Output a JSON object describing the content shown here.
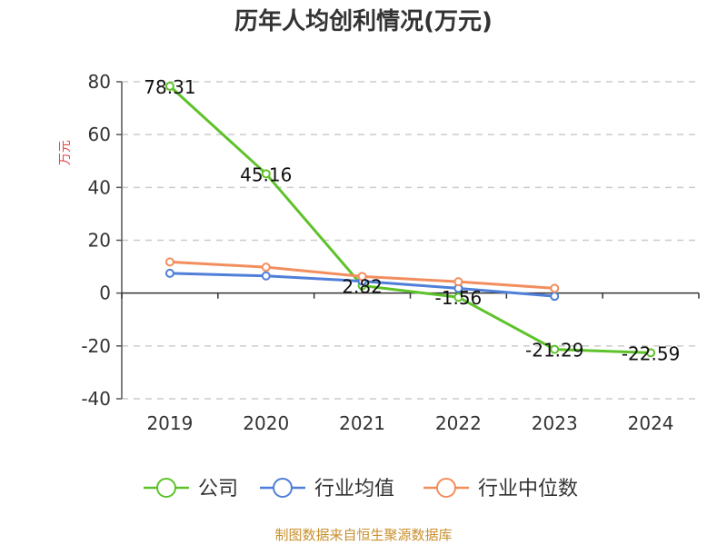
{
  "chart_data": {
    "type": "line",
    "title": "历年人均创利情况(万元)",
    "ylabel": "万元",
    "categories": [
      "2019",
      "2020",
      "2021",
      "2022",
      "2023",
      "2024"
    ],
    "ylim": [
      -40,
      80
    ],
    "yticks": [
      80,
      60,
      40,
      20,
      0,
      -20,
      -40
    ],
    "grid": true,
    "legend_position": "bottom",
    "series": [
      {
        "name": "公司",
        "color": "#5ec22a",
        "values": [
          78.31,
          45.16,
          2.82,
          -1.56,
          -21.29,
          -22.59
        ],
        "labels": [
          "78.31",
          "45.16",
          "2.82",
          "-1.56",
          "-21.29",
          "-22.59"
        ]
      },
      {
        "name": "行业均值",
        "color": "#4f7fd8",
        "values": [
          7.5,
          6.5,
          4.5,
          1.8,
          -1.2,
          null
        ]
      },
      {
        "name": "行业中位数",
        "color": "#f28e5e",
        "values": [
          11.8,
          9.8,
          6.3,
          4.3,
          1.8,
          null
        ]
      }
    ]
  },
  "source": "制图数据来自恒生聚源数据库"
}
